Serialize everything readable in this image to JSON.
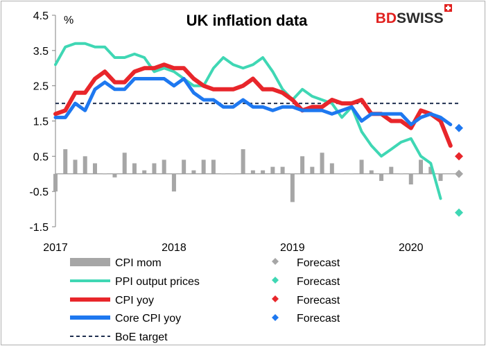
{
  "colors": {
    "cpi_mom": "#a6a6a6",
    "ppi": "#3fd7b4",
    "cpi_yoy": "#e8262b",
    "core": "#1e78f0",
    "boe": "#1f2f4f",
    "brand_red": "#e1211f",
    "brand_dark": "#2b2b2b"
  },
  "brand": {
    "part1": "BD",
    "part2": "SWISS"
  },
  "chart_data": {
    "type": "line",
    "title": "UK inflation data",
    "ylabel": "%",
    "ylim": [
      -1.5,
      4.5
    ],
    "yticks": [
      4.5,
      3.5,
      2.5,
      1.5,
      0.5,
      -0.5,
      -1.5
    ],
    "ytick_labels": [
      "4.5",
      "3.5",
      "2.5",
      "1.5",
      "0.5",
      "-0.5",
      "-1.5"
    ],
    "xlim": [
      2017.0,
      2020.4167
    ],
    "xticks": [
      2017,
      2018,
      2019,
      2020
    ],
    "xtick_labels": [
      "2017",
      "2018",
      "2019",
      "2020"
    ],
    "grid": false,
    "legend_position": "bottom",
    "cpi_mom": {
      "name": "CPI mom",
      "values": [
        -0.5,
        0.7,
        0.4,
        0.5,
        0.3,
        0.0,
        -0.1,
        0.6,
        0.3,
        0.1,
        0.3,
        0.4,
        -0.5,
        0.4,
        0.1,
        0.4,
        0.4,
        0.0,
        0.0,
        0.7,
        0.1,
        0.1,
        0.2,
        0.2,
        -0.8,
        0.5,
        0.2,
        0.6,
        0.3,
        0.0,
        0.0,
        0.4,
        0.1,
        -0.2,
        0.2,
        0.0,
        -0.3,
        0.4,
        0.2,
        -0.2
      ]
    },
    "ppi": {
      "name": "PPI output prices",
      "values": [
        3.1,
        3.6,
        3.7,
        3.7,
        3.6,
        3.6,
        3.3,
        3.3,
        3.4,
        3.3,
        2.9,
        3.0,
        2.9,
        2.7,
        2.5,
        2.5,
        3.0,
        3.3,
        3.1,
        3.0,
        3.1,
        3.3,
        2.9,
        2.4,
        2.1,
        2.4,
        2.2,
        2.1,
        2.0,
        1.6,
        1.9,
        1.2,
        0.8,
        0.5,
        0.7,
        0.9,
        1.0,
        0.5,
        0.3,
        -0.7
      ]
    },
    "cpi_yoy": {
      "name": "CPI yoy",
      "values": [
        1.7,
        1.8,
        2.3,
        2.3,
        2.7,
        2.9,
        2.6,
        2.6,
        2.9,
        3.0,
        3.0,
        3.1,
        3.0,
        3.0,
        2.7,
        2.5,
        2.4,
        2.4,
        2.4,
        2.5,
        2.7,
        2.4,
        2.4,
        2.3,
        2.1,
        1.8,
        1.9,
        1.9,
        2.1,
        2.0,
        2.0,
        2.1,
        1.7,
        1.7,
        1.5,
        1.5,
        1.3,
        1.8,
        1.7,
        1.5,
        0.8
      ]
    },
    "core": {
      "name": "Core CPI yoy",
      "values": [
        1.6,
        1.6,
        2.0,
        1.8,
        2.4,
        2.6,
        2.4,
        2.4,
        2.7,
        2.7,
        2.7,
        2.7,
        2.5,
        2.7,
        2.3,
        2.1,
        2.1,
        1.9,
        1.9,
        2.1,
        1.9,
        1.9,
        1.8,
        1.9,
        1.9,
        1.8,
        1.8,
        1.8,
        1.7,
        1.8,
        1.9,
        1.5,
        1.7,
        1.7,
        1.7,
        1.7,
        1.4,
        1.6,
        1.7,
        1.6,
        1.4
      ]
    },
    "boe_target": {
      "name": "BoE target",
      "value": 2.0
    },
    "forecasts": {
      "label": "Forecast",
      "cpi_mom": 0.0,
      "ppi": -1.1,
      "cpi_yoy": 0.5,
      "core": 1.3
    }
  }
}
